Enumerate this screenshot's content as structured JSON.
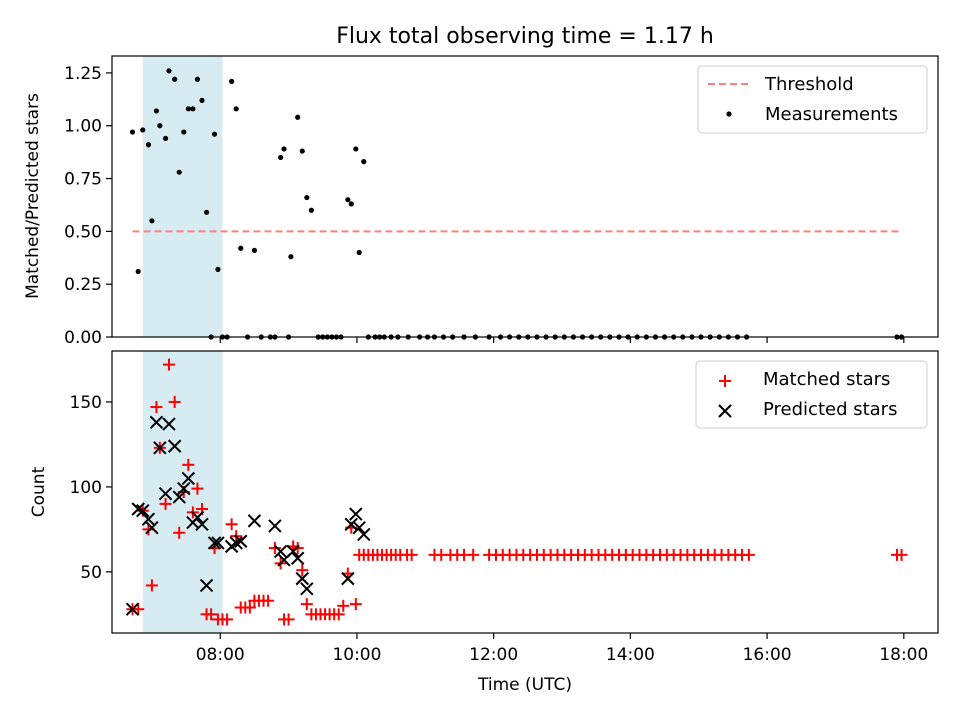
{
  "figure": {
    "title": "Flux total observing time = 1.17 h"
  },
  "colors": {
    "threshold": "#ff7f7f",
    "measurements": "#000000",
    "matched": "#ff0000",
    "predicted": "#000000",
    "shade": "#add8e6"
  },
  "chart_data": [
    {
      "type": "scatter",
      "panel": "top",
      "title": "Flux total observing time = 1.17 h",
      "xlabel": "",
      "ylabel": "Matched/Predicted stars",
      "xlim": [
        "06:25",
        "18:30"
      ],
      "ylim": [
        0,
        1.33
      ],
      "yticks": [
        "0.00",
        "0.25",
        "0.50",
        "0.75",
        "1.00",
        "1.25"
      ],
      "shaded_span": [
        "06:52",
        "08:02"
      ],
      "legend": {
        "position": "top-right",
        "entries": [
          "Threshold",
          "Measurements"
        ]
      },
      "threshold": {
        "name": "Threshold",
        "y": 0.5,
        "x_range": [
          "06:43",
          "17:58"
        ],
        "style": "dashed"
      },
      "series": [
        {
          "name": "Measurements",
          "marker": "dot",
          "points": [
            [
              "06:43",
              0.97
            ],
            [
              "06:48",
              0.31
            ],
            [
              "06:52",
              0.98
            ],
            [
              "06:57",
              0.91
            ],
            [
              "07:00",
              0.55
            ],
            [
              "07:04",
              1.07
            ],
            [
              "07:07",
              1.0
            ],
            [
              "07:12",
              0.94
            ],
            [
              "07:15",
              1.26
            ],
            [
              "07:20",
              1.22
            ],
            [
              "07:24",
              0.78
            ],
            [
              "07:28",
              0.97
            ],
            [
              "07:32",
              1.08
            ],
            [
              "07:36",
              1.08
            ],
            [
              "07:40",
              1.22
            ],
            [
              "07:44",
              1.12
            ],
            [
              "07:48",
              0.59
            ],
            [
              "07:52",
              0.0
            ],
            [
              "07:55",
              0.96
            ],
            [
              "07:58",
              0.32
            ],
            [
              "08:02",
              0.0
            ],
            [
              "08:06",
              0.0
            ],
            [
              "08:10",
              1.21
            ],
            [
              "08:14",
              1.08
            ],
            [
              "08:18",
              0.42
            ],
            [
              "08:24",
              0.0
            ],
            [
              "08:30",
              0.41
            ],
            [
              "08:36",
              0.0
            ],
            [
              "08:44",
              0.0
            ],
            [
              "08:48",
              0.0
            ],
            [
              "08:53",
              0.85
            ],
            [
              "08:56",
              0.89
            ],
            [
              "09:00",
              0.0
            ],
            [
              "09:02",
              0.38
            ],
            [
              "09:08",
              1.04
            ],
            [
              "09:12",
              0.88
            ],
            [
              "09:16",
              0.66
            ],
            [
              "09:20",
              0.6
            ],
            [
              "09:26",
              0.0
            ],
            [
              "09:30",
              0.0
            ],
            [
              "09:34",
              0.0
            ],
            [
              "09:38",
              0.0
            ],
            [
              "09:42",
              0.0
            ],
            [
              "09:46",
              0.0
            ],
            [
              "09:52",
              0.65
            ],
            [
              "09:55",
              0.63
            ],
            [
              "09:59",
              0.89
            ],
            [
              "10:02",
              0.4
            ],
            [
              "10:06",
              0.83
            ],
            [
              "10:10",
              0.0
            ],
            [
              "10:16",
              0.0
            ],
            [
              "10:20",
              0.0
            ],
            [
              "10:24",
              0.0
            ],
            [
              "10:30",
              0.0
            ],
            [
              "10:36",
              0.0
            ],
            [
              "10:45",
              0.0
            ],
            [
              "10:55",
              0.0
            ],
            [
              "11:02",
              0.0
            ],
            [
              "11:08",
              0.0
            ],
            [
              "11:16",
              0.0
            ],
            [
              "11:24",
              0.0
            ],
            [
              "11:34",
              0.0
            ],
            [
              "11:44",
              0.0
            ],
            [
              "11:56",
              0.0
            ],
            [
              "12:06",
              0.0
            ],
            [
              "12:14",
              0.0
            ],
            [
              "12:22",
              0.0
            ],
            [
              "12:30",
              0.0
            ],
            [
              "12:38",
              0.0
            ],
            [
              "12:46",
              0.0
            ],
            [
              "12:54",
              0.0
            ],
            [
              "13:02",
              0.0
            ],
            [
              "13:10",
              0.0
            ],
            [
              "13:18",
              0.0
            ],
            [
              "13:26",
              0.0
            ],
            [
              "13:34",
              0.0
            ],
            [
              "13:42",
              0.0
            ],
            [
              "13:50",
              0.0
            ],
            [
              "13:58",
              0.0
            ],
            [
              "14:06",
              0.0
            ],
            [
              "14:14",
              0.0
            ],
            [
              "14:22",
              0.0
            ],
            [
              "14:30",
              0.0
            ],
            [
              "14:38",
              0.0
            ],
            [
              "14:46",
              0.0
            ],
            [
              "14:54",
              0.0
            ],
            [
              "15:02",
              0.0
            ],
            [
              "15:10",
              0.0
            ],
            [
              "15:18",
              0.0
            ],
            [
              "15:26",
              0.0
            ],
            [
              "15:34",
              0.0
            ],
            [
              "15:42",
              0.0
            ],
            [
              "17:54",
              0.0
            ],
            [
              "17:58",
              0.0
            ]
          ]
        }
      ]
    },
    {
      "type": "scatter",
      "panel": "bottom",
      "xlabel": "Time (UTC)",
      "ylabel": "Count",
      "xlim": [
        "06:25",
        "18:30"
      ],
      "ylim": [
        14,
        180
      ],
      "yticks": [
        "50",
        "100",
        "150"
      ],
      "xticks": [
        "08:00",
        "10:00",
        "12:00",
        "14:00",
        "16:00",
        "18:00"
      ],
      "shaded_span": [
        "06:52",
        "08:02"
      ],
      "legend": {
        "position": "top-right",
        "entries": [
          "Matched stars",
          "Predicted stars"
        ]
      },
      "series": [
        {
          "name": "Matched stars",
          "marker": "plus",
          "points": [
            [
              "06:43",
              28
            ],
            [
              "06:48",
              28
            ],
            [
              "06:52",
              86
            ],
            [
              "06:57",
              75
            ],
            [
              "07:00",
              42
            ],
            [
              "07:04",
              147
            ],
            [
              "07:07",
              123
            ],
            [
              "07:12",
              90
            ],
            [
              "07:15",
              172
            ],
            [
              "07:20",
              150
            ],
            [
              "07:24",
              73
            ],
            [
              "07:28",
              97
            ],
            [
              "07:32",
              113
            ],
            [
              "07:36",
              85
            ],
            [
              "07:40",
              99
            ],
            [
              "07:44",
              87
            ],
            [
              "07:48",
              25
            ],
            [
              "07:52",
              25
            ],
            [
              "07:55",
              64
            ],
            [
              "07:58",
              22
            ],
            [
              "08:02",
              22
            ],
            [
              "08:06",
              22
            ],
            [
              "08:10",
              78
            ],
            [
              "08:14",
              71
            ],
            [
              "08:18",
              29
            ],
            [
              "08:22",
              29
            ],
            [
              "08:26",
              29
            ],
            [
              "08:30",
              33
            ],
            [
              "08:34",
              33
            ],
            [
              "08:38",
              33
            ],
            [
              "08:42",
              33
            ],
            [
              "08:48",
              64
            ],
            [
              "08:53",
              55
            ],
            [
              "08:56",
              22
            ],
            [
              "09:00",
              22
            ],
            [
              "09:04",
              65
            ],
            [
              "09:08",
              64
            ],
            [
              "09:12",
              51
            ],
            [
              "09:16",
              31
            ],
            [
              "09:20",
              25
            ],
            [
              "09:24",
              25
            ],
            [
              "09:28",
              25
            ],
            [
              "09:32",
              25
            ],
            [
              "09:36",
              25
            ],
            [
              "09:40",
              25
            ],
            [
              "09:44",
              25
            ],
            [
              "09:48",
              30
            ],
            [
              "09:52",
              49
            ],
            [
              "09:55",
              76
            ],
            [
              "09:59",
              31
            ],
            [
              "10:02",
              60
            ],
            [
              "10:06",
              60
            ],
            [
              "10:10",
              60
            ],
            [
              "10:14",
              60
            ],
            [
              "10:18",
              60
            ],
            [
              "10:22",
              60
            ],
            [
              "10:26",
              60
            ],
            [
              "10:30",
              60
            ],
            [
              "10:34",
              60
            ],
            [
              "10:38",
              60
            ],
            [
              "10:44",
              60
            ],
            [
              "10:48",
              60
            ],
            [
              "11:08",
              60
            ],
            [
              "11:14",
              60
            ],
            [
              "11:22",
              60
            ],
            [
              "11:28",
              60
            ],
            [
              "11:34",
              60
            ],
            [
              "11:42",
              60
            ],
            [
              "11:56",
              60
            ],
            [
              "12:02",
              60
            ],
            [
              "12:08",
              60
            ],
            [
              "12:14",
              60
            ],
            [
              "12:20",
              60
            ],
            [
              "12:26",
              60
            ],
            [
              "12:32",
              60
            ],
            [
              "12:38",
              60
            ],
            [
              "12:44",
              60
            ],
            [
              "12:50",
              60
            ],
            [
              "12:56",
              60
            ],
            [
              "13:02",
              60
            ],
            [
              "13:08",
              60
            ],
            [
              "13:14",
              60
            ],
            [
              "13:20",
              60
            ],
            [
              "13:26",
              60
            ],
            [
              "13:32",
              60
            ],
            [
              "13:38",
              60
            ],
            [
              "13:44",
              60
            ],
            [
              "13:50",
              60
            ],
            [
              "13:56",
              60
            ],
            [
              "14:02",
              60
            ],
            [
              "14:08",
              60
            ],
            [
              "14:14",
              60
            ],
            [
              "14:20",
              60
            ],
            [
              "14:26",
              60
            ],
            [
              "14:32",
              60
            ],
            [
              "14:38",
              60
            ],
            [
              "14:44",
              60
            ],
            [
              "14:50",
              60
            ],
            [
              "14:56",
              60
            ],
            [
              "15:02",
              60
            ],
            [
              "15:08",
              60
            ],
            [
              "15:14",
              60
            ],
            [
              "15:20",
              60
            ],
            [
              "15:26",
              60
            ],
            [
              "15:32",
              60
            ],
            [
              "15:38",
              60
            ],
            [
              "15:44",
              60
            ],
            [
              "17:54",
              60
            ],
            [
              "17:58",
              60
            ]
          ]
        },
        {
          "name": "Predicted stars",
          "marker": "x",
          "points": [
            [
              "06:43",
              28
            ],
            [
              "06:48",
              87
            ],
            [
              "06:52",
              86
            ],
            [
              "06:57",
              81
            ],
            [
              "07:00",
              76
            ],
            [
              "07:04",
              138
            ],
            [
              "07:07",
              123
            ],
            [
              "07:12",
              96
            ],
            [
              "07:15",
              137
            ],
            [
              "07:20",
              124
            ],
            [
              "07:24",
              94
            ],
            [
              "07:28",
              99
            ],
            [
              "07:32",
              105
            ],
            [
              "07:36",
              79
            ],
            [
              "07:40",
              82
            ],
            [
              "07:44",
              78
            ],
            [
              "07:48",
              42
            ],
            [
              "07:55",
              67
            ],
            [
              "07:58",
              67
            ],
            [
              "08:10",
              65
            ],
            [
              "08:14",
              67
            ],
            [
              "08:18",
              68
            ],
            [
              "08:30",
              80
            ],
            [
              "08:48",
              77
            ],
            [
              "08:53",
              62
            ],
            [
              "08:56",
              57
            ],
            [
              "09:04",
              62
            ],
            [
              "09:08",
              58
            ],
            [
              "09:12",
              46
            ],
            [
              "09:16",
              40
            ],
            [
              "09:52",
              46
            ],
            [
              "09:55",
              78
            ],
            [
              "09:59",
              84
            ],
            [
              "10:02",
              76
            ],
            [
              "10:06",
              72
            ]
          ]
        }
      ]
    }
  ]
}
